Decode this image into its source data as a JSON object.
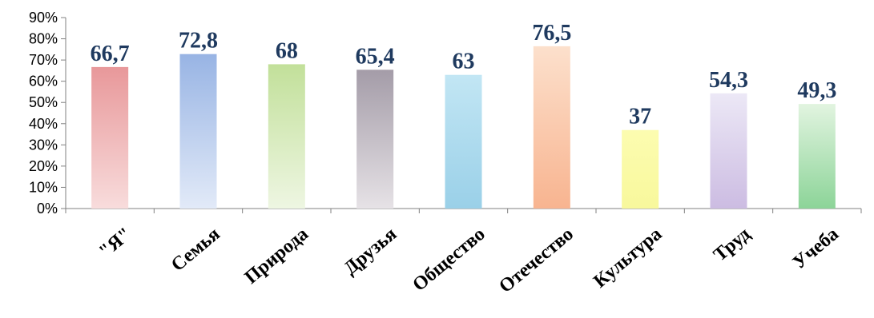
{
  "chart_data": {
    "type": "bar",
    "title": "",
    "xlabel": "",
    "ylabel": "",
    "ylim": [
      0,
      90
    ],
    "ytick_labels": [
      "0%",
      "10%",
      "20%",
      "30%",
      "40%",
      "50%",
      "60%",
      "70%",
      "80%",
      "90%"
    ],
    "grid": false,
    "legend": "none",
    "categories": [
      "\"Я\"",
      "Семья",
      "Природа",
      "Друзья",
      "Общество",
      "Отечество",
      "Культура",
      "Труд",
      "Учеба"
    ],
    "values": [
      66.7,
      72.8,
      68,
      65.4,
      63,
      76.5,
      37,
      54.3,
      49.3
    ],
    "data_labels": [
      "66,7",
      "72,8",
      "68",
      "65,4",
      "63",
      "76,5",
      "37",
      "54,3",
      "49,3"
    ],
    "bar_colors": [
      [
        "#e8989a",
        "#f8dcdc"
      ],
      [
        "#98b4e4",
        "#e2eaf8"
      ],
      [
        "#c2e09a",
        "#eef6e2"
      ],
      [
        "#a49ca8",
        "#e6e2e6"
      ],
      [
        "#c2e6f4",
        "#9ad0e8"
      ],
      [
        "#fce0cc",
        "#f8b490"
      ],
      [
        "#fcfcb0",
        "#f8f89c"
      ],
      [
        "#ece8f6",
        "#ccbce2"
      ],
      [
        "#e2f4e0",
        "#8cd498"
      ]
    ],
    "label_color": "#1f3a5f"
  }
}
